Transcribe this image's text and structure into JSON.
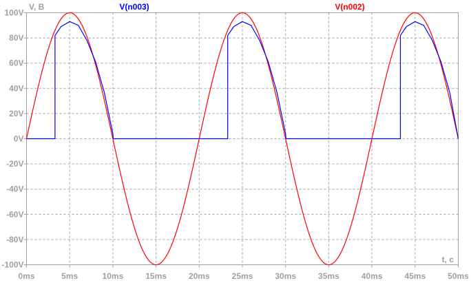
{
  "chart_data": {
    "type": "line",
    "ylabel": "V, B",
    "xlabel": "t, c",
    "x_unit": "ms",
    "xlim": [
      0,
      50
    ],
    "ylim": [
      -100,
      100
    ],
    "grid": true,
    "x_ticks": [
      "0ms",
      "5ms",
      "10ms",
      "15ms",
      "20ms",
      "25ms",
      "30ms",
      "35ms",
      "40ms",
      "45ms",
      "50ms"
    ],
    "y_ticks": [
      "100V",
      "80V",
      "60V",
      "40V",
      "20V",
      "0V",
      "-20V",
      "-40V",
      "-60V",
      "-80V",
      "-100V"
    ],
    "y_tick_values": [
      100,
      80,
      60,
      40,
      20,
      0,
      -20,
      -40,
      -60,
      -80,
      -100
    ],
    "series": [
      {
        "name": "V(n003)",
        "color": "#0000ff",
        "x": [
          0,
          3.3,
          3.3,
          4,
          5,
          6,
          7,
          8,
          9,
          10,
          10.05,
          23.3,
          23.3,
          24,
          25,
          26,
          27,
          28,
          29,
          30,
          30.05,
          43.3,
          43.3,
          44,
          45,
          46,
          47,
          48,
          49,
          50
        ],
        "y": [
          0,
          0,
          82,
          89,
          93,
          90,
          78,
          61,
          37,
          4,
          0,
          0,
          82,
          89,
          93,
          90,
          78,
          61,
          37,
          4,
          0,
          0,
          82,
          89,
          93,
          90,
          78,
          61,
          37,
          0
        ]
      },
      {
        "name": "V(n002)",
        "color": "#ff0000",
        "amplitude": 100,
        "period_ms": 20,
        "x": [
          0,
          1,
          2,
          3,
          4,
          5,
          6,
          7,
          8,
          9,
          10,
          11,
          12,
          13,
          14,
          15,
          16,
          17,
          18,
          19,
          20,
          21,
          22,
          23,
          24,
          25,
          26,
          27,
          28,
          29,
          30,
          31,
          32,
          33,
          34,
          35,
          36,
          37,
          38,
          39,
          40,
          41,
          42,
          43,
          44,
          45,
          46,
          47,
          48,
          49,
          50
        ],
        "y": [
          0,
          31,
          59,
          81,
          95,
          100,
          95,
          81,
          59,
          31,
          0,
          -31,
          -59,
          -81,
          -95,
          -100,
          -95,
          -81,
          -59,
          -31,
          0,
          31,
          59,
          81,
          95,
          100,
          95,
          81,
          59,
          31,
          0,
          -31,
          -59,
          -81,
          -95,
          -100,
          -95,
          -81,
          -59,
          -31,
          0,
          31,
          59,
          81,
          95,
          100,
          95,
          81,
          59,
          31,
          0
        ]
      }
    ]
  }
}
